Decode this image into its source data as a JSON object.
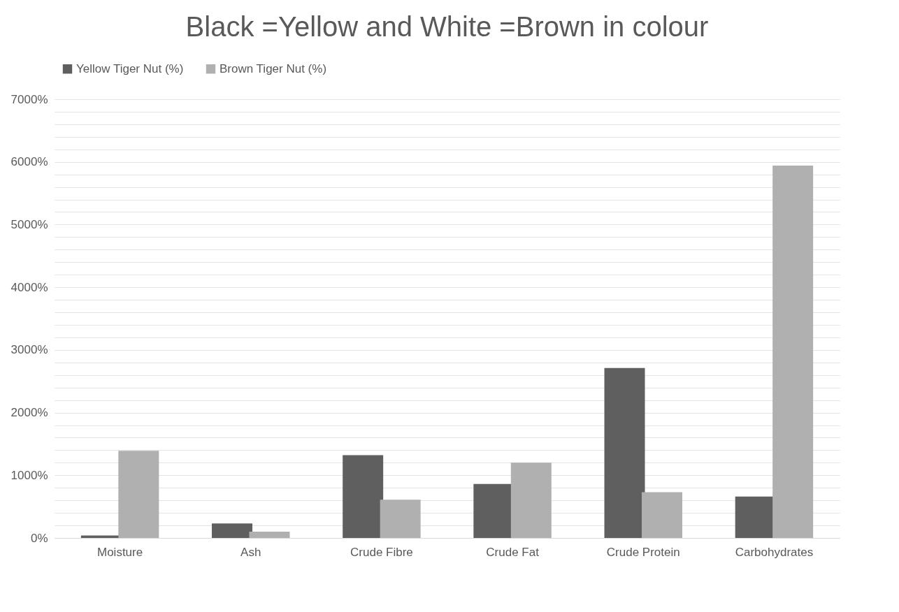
{
  "chart_data": {
    "type": "bar",
    "title": "Black =Yellow and White =Brown in colour",
    "categories": [
      "Moisture",
      "Ash",
      "Crude Fibre",
      "Crude Fat",
      "Crude Protein",
      "Carbohydrates"
    ],
    "series": [
      {
        "name": "Yellow Tiger Nut (%)",
        "color": "#5f5f5f",
        "values": [
          40,
          230,
          1320,
          860,
          2710,
          660
        ]
      },
      {
        "name": "Brown Tiger Nut (%)",
        "color": "#b0b0b0",
        "values": [
          1390,
          100,
          610,
          1200,
          730,
          5940
        ]
      }
    ],
    "ylim": [
      0,
      7000
    ],
    "yticks": [
      {
        "value": 0,
        "label": "0%"
      },
      {
        "value": 200,
        "label": null
      },
      {
        "value": 400,
        "label": null
      },
      {
        "value": 600,
        "label": null
      },
      {
        "value": 800,
        "label": null
      },
      {
        "value": 1000,
        "label": "1000%"
      },
      {
        "value": 1200,
        "label": null
      },
      {
        "value": 1400,
        "label": null
      },
      {
        "value": 1600,
        "label": null
      },
      {
        "value": 1800,
        "label": null
      },
      {
        "value": 2000,
        "label": "2000%"
      },
      {
        "value": 2200,
        "label": null
      },
      {
        "value": 2400,
        "label": null
      },
      {
        "value": 2600,
        "label": null
      },
      {
        "value": 2800,
        "label": null
      },
      {
        "value": 3000,
        "label": "3000%"
      },
      {
        "value": 3200,
        "label": null
      },
      {
        "value": 3400,
        "label": null
      },
      {
        "value": 3600,
        "label": null
      },
      {
        "value": 3800,
        "label": null
      },
      {
        "value": 4000,
        "label": "4000%"
      },
      {
        "value": 4200,
        "label": null
      },
      {
        "value": 4400,
        "label": null
      },
      {
        "value": 4600,
        "label": null
      },
      {
        "value": 4800,
        "label": null
      },
      {
        "value": 5000,
        "label": "5000%"
      },
      {
        "value": 5200,
        "label": null
      },
      {
        "value": 5400,
        "label": null
      },
      {
        "value": 5600,
        "label": null
      },
      {
        "value": 5800,
        "label": null
      },
      {
        "value": 6000,
        "label": "6000%"
      },
      {
        "value": 6200,
        "label": null
      },
      {
        "value": 6400,
        "label": null
      },
      {
        "value": 6600,
        "label": null
      },
      {
        "value": 6800,
        "label": null
      },
      {
        "value": 7000,
        "label": "7000%"
      }
    ],
    "grid": "y",
    "legend": "top"
  }
}
